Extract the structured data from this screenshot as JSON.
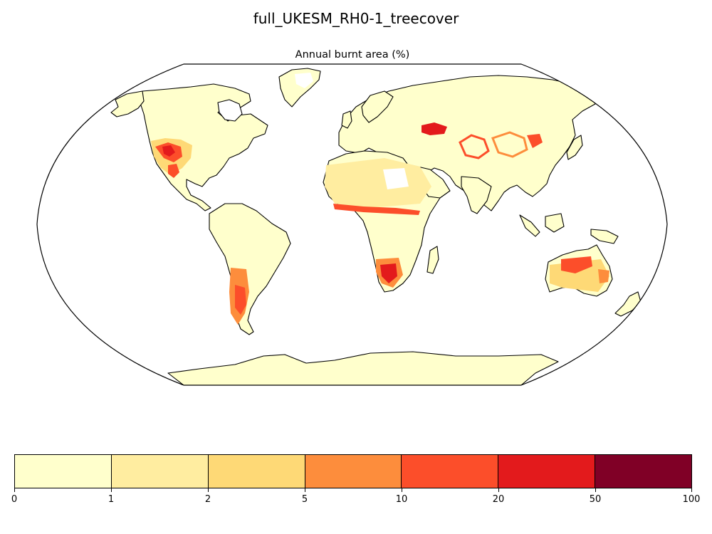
{
  "figure": {
    "title": "full_UKESM_RH0-1_treecover",
    "map_title": "Annual burnt area (%)"
  },
  "map": {
    "projection": "robinson",
    "coastlines": true,
    "background": "#ffffff",
    "hotspots": [
      {
        "region": "western-united-states",
        "level": 6
      },
      {
        "region": "northern-mexico",
        "level": 5
      },
      {
        "region": "kazakhstan",
        "level": 6
      },
      {
        "region": "central-asia",
        "level": 5
      },
      {
        "region": "mongolia",
        "level": 5
      },
      {
        "region": "sahel-belt",
        "level": 5
      },
      {
        "region": "southern-africa",
        "level": 6
      },
      {
        "region": "argentina",
        "level": 5
      },
      {
        "region": "central-australia",
        "level": 5
      },
      {
        "region": "eastern-australia",
        "level": 4
      }
    ]
  },
  "colorbar": {
    "boundaries": [
      "0",
      "1",
      "2",
      "5",
      "10",
      "20",
      "50",
      "100"
    ],
    "colors": [
      "#ffffcc",
      "#ffeda0",
      "#fed976",
      "#fd8d3c",
      "#fc4e2a",
      "#e31a1c",
      "#800026"
    ],
    "cmap": "YlOrRd"
  }
}
